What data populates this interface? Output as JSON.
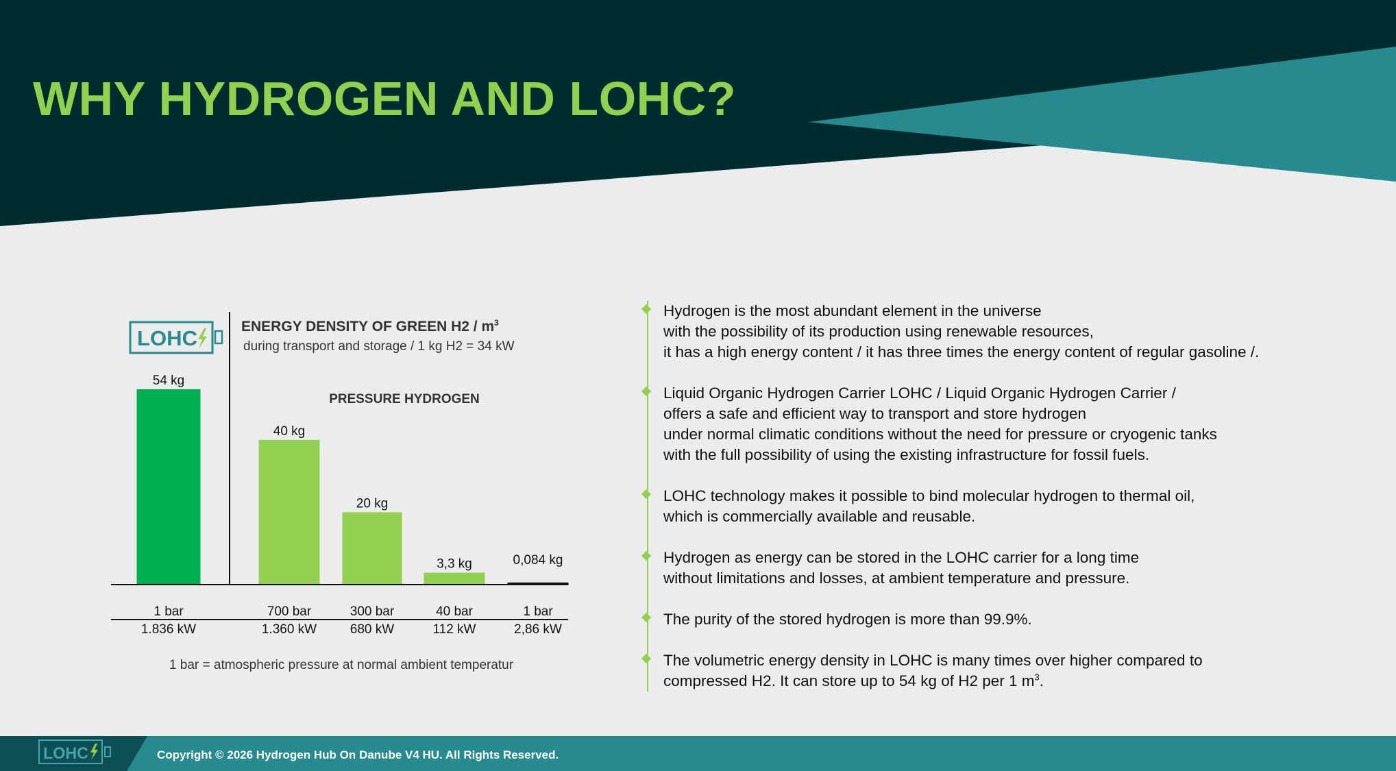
{
  "title": "WHY HYDROGEN AND LOHC?",
  "colors": {
    "dark": "#002c2f",
    "teal": "#268a8f",
    "accent_green": "#92d050",
    "bar_dark_green": "#00b050",
    "background": "#ececec"
  },
  "logo": {
    "text": "LOHC",
    "icon": "lightning-bolt-icon"
  },
  "chart_data": {
    "type": "bar",
    "title": "ENERGY DENSITY OF GREEN H2 / m",
    "title_superscript": "3",
    "subtitle": "during transport and storage / 1 kg H2 = 34 kW",
    "group_label": "PRESSURE HYDROGEN",
    "unit": "kg",
    "ylim": [
      0,
      54
    ],
    "categories": [
      {
        "pressure": "1 bar",
        "energy": "1.836 kW",
        "label": "54 kg",
        "value": 54,
        "color": "#00b050"
      },
      {
        "pressure": "700 bar",
        "energy": "1.360 kW",
        "label": "40 kg",
        "value": 40,
        "color": "#92d050"
      },
      {
        "pressure": "300 bar",
        "energy": "680 kW",
        "label": "20 kg",
        "value": 20,
        "color": "#92d050"
      },
      {
        "pressure": "40 bar",
        "energy": "112 kW",
        "label": "3,3 kg",
        "value": 3.3,
        "color": "#92d050"
      },
      {
        "pressure": "1 bar",
        "energy": "2,86 kW",
        "label": "0,084 kg",
        "value": 0.084,
        "color": "#111111"
      }
    ],
    "footnote": "1 bar = atmospheric pressure at normal ambient temperatur"
  },
  "bullets": [
    {
      "lines": [
        "Hydrogen is the most abundant element in the universe",
        "with the possibility of its production using renewable resources,",
        "it has a high energy content / it has three times the energy content of regular gasoline /."
      ]
    },
    {
      "lines": [
        "Liquid Organic Hydrogen Carrier LOHC / Liquid Organic Hydrogen Carrier /",
        "offers a safe and efficient way to transport and store hydrogen",
        "under normal climatic conditions without the need for pressure or cryogenic tanks",
        "with the full possibility of using the existing infrastructure for fossil fuels."
      ]
    },
    {
      "lines": [
        "LOHC technology makes it possible to bind molecular hydrogen to thermal oil,",
        "which is commercially available and reusable."
      ]
    },
    {
      "lines": [
        "Hydrogen as energy can be stored in the LOHC carrier for a long time",
        "without limitations and losses, at ambient temperature and pressure."
      ]
    },
    {
      "lines": [
        "The purity of the stored hydrogen is more than 99.9%."
      ]
    },
    {
      "lines": [
        "The volumetric energy density in LOHC is many times over higher compared to",
        "compressed H2. It can store up to 54 kg of H2 per 1 m"
      ],
      "last_superscript": "3",
      "last_suffix": "."
    }
  ],
  "footer": {
    "copyright": "Copyright © 2026 Hydrogen Hub On Danube V4 HU. All Rights Reserved."
  }
}
